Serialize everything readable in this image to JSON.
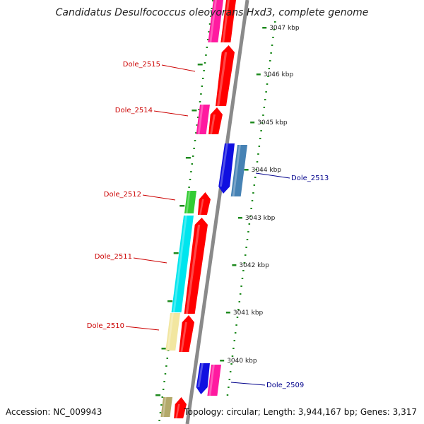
{
  "title": "Candidatus Desulfococcus oleovorans Hxd3, complete genome",
  "accession": "Accession: NC_009943",
  "summary": "Topology: circular; Length: 3,944,167 bp; Genes: 3,317",
  "colors": {
    "backbone": "#8a8a8a",
    "tick": "#1e8a1e",
    "forward_gene": "#ff0000",
    "reverse_gene": "#1010e0",
    "label_forward": "#cc0000",
    "label_reverse": "#00008b",
    "magenta": "#ff1aa0",
    "green": "#33cc33",
    "cyan": "#00e5ee",
    "khaki": "#f2e6a0",
    "steelblue": "#4682b4",
    "olive": "#b3a96a"
  },
  "kbp_labels": [
    "3047 kbp",
    "3046 kbp",
    "3045 kbp",
    "3044 kbp",
    "3043 kbp",
    "3042 kbp",
    "3041 kbp",
    "3040 kbp"
  ],
  "loci": [
    "Dole_2515",
    "Dole_2514",
    "Dole_2513",
    "Dole_2512",
    "Dole_2511",
    "Dole_2510",
    "Dole_2509"
  ]
}
